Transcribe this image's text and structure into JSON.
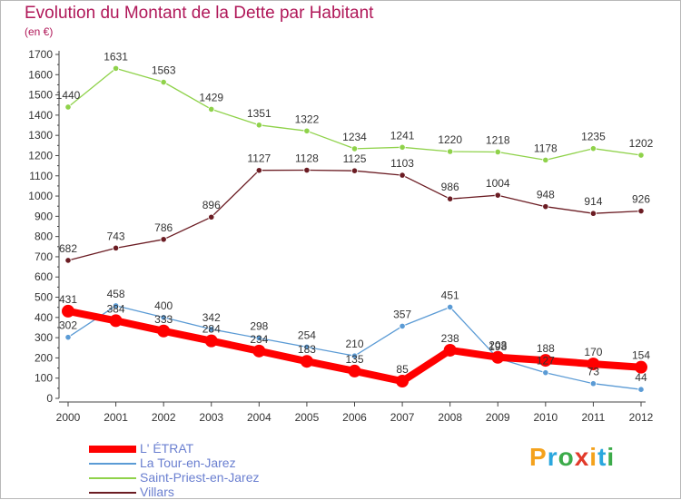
{
  "header": {
    "title": "Evolution du Montant de la Dette par Habitant",
    "subtitle": "(en €)"
  },
  "brand": {
    "letters": [
      "P",
      "r",
      "o",
      "x",
      "i",
      "t",
      "i"
    ],
    "colors": [
      "#f4a21d",
      "#2aa7de",
      "#3cab4a",
      "#e23a2a",
      "#f4a21d",
      "#2aa7de",
      "#3cab4a"
    ]
  },
  "chart_data": {
    "type": "line",
    "title": "Evolution du Montant de la Dette par Habitant",
    "subtitle": "(en €)",
    "xlabel": "",
    "ylabel": "",
    "categories": [
      "2000",
      "2001",
      "2002",
      "2003",
      "2004",
      "2005",
      "2006",
      "2007",
      "2008",
      "2009",
      "2010",
      "2011",
      "2012"
    ],
    "ylim": [
      0,
      1700
    ],
    "yticks": [
      0,
      100,
      200,
      300,
      400,
      500,
      600,
      700,
      800,
      900,
      1000,
      1100,
      1200,
      1300,
      1400,
      1500,
      1600,
      1700
    ],
    "grid": false,
    "legend": "bottom-left",
    "series": [
      {
        "name": "L' ÉTRAT",
        "color": "#ff0000",
        "values": [
          431,
          384,
          333,
          284,
          234,
          183,
          135,
          85,
          238,
          203,
          188,
          170,
          154
        ],
        "labels": [
          "431",
          "384",
          "333",
          "284",
          "234",
          "183",
          "135",
          "85",
          "238",
          "203",
          "188",
          "170",
          "154"
        ]
      },
      {
        "name": "La Tour-en-Jarez",
        "color": "#5b9bd5",
        "values": [
          302,
          458,
          400,
          342,
          298,
          254,
          210,
          357,
          451,
          198,
          127,
          73,
          44
        ],
        "labels": [
          "302",
          "458",
          "400",
          "342",
          "298",
          "254",
          "210",
          "357",
          "451",
          "198",
          "127",
          "73",
          "44"
        ]
      },
      {
        "name": "Saint-Priest-en-Jarez",
        "color": "#8fd24a",
        "values": [
          1440,
          1631,
          1563,
          1429,
          1351,
          1322,
          1234,
          1241,
          1220,
          1218,
          1178,
          1235,
          1202
        ],
        "labels": [
          "1440",
          "1631",
          "1563",
          "1429",
          "1351",
          "1322",
          "1234",
          "1241",
          "1220",
          "1218",
          "1178",
          "1235",
          "1202"
        ]
      },
      {
        "name": "Villars",
        "color": "#6b1c23",
        "values": [
          682,
          743,
          786,
          896,
          1127,
          1128,
          1125,
          1103,
          986,
          1004,
          948,
          914,
          926
        ],
        "labels": [
          "682",
          "743",
          "786",
          "896",
          "1127",
          "1128",
          "1125",
          "1103",
          "986",
          "1004",
          "948",
          "914",
          "926"
        ]
      }
    ]
  }
}
